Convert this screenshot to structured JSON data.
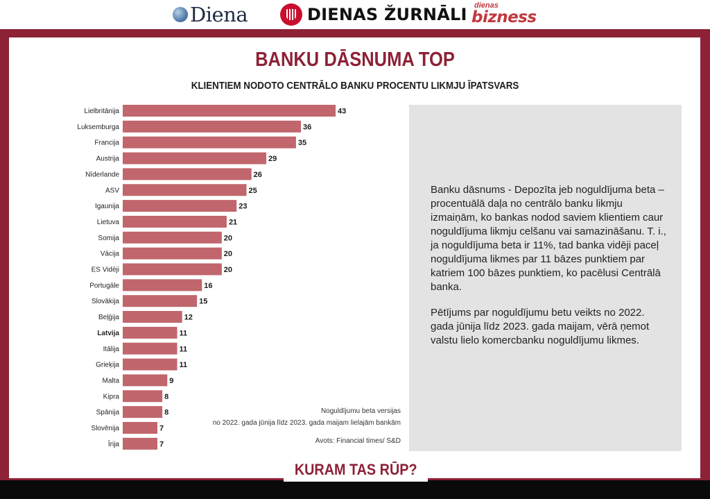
{
  "header": {
    "logos": [
      {
        "text": "Diena",
        "icon": "globe-icon"
      },
      {
        "text": "DIENAS ŽURNĀLI",
        "icon": "zurnali-badge-icon"
      },
      {
        "small": "dienas",
        "text": "bizness"
      }
    ]
  },
  "title": "BANKU DĀSNUMA TOP",
  "subtitle": "KLIENTIEM NODOTO CENTRĀLO BANKU PROCENTU LIKMJU ĪPATSVARS",
  "chart_data": {
    "type": "bar",
    "orientation": "horizontal",
    "categories": [
      "Lielbritānija",
      "Luksemburga",
      "Francija",
      "Austrija",
      "Nīderlande",
      "ASV",
      "Igaunija",
      "Lietuva",
      "Somija",
      "Vācija",
      "ES Vidēji",
      "Portugāle",
      "Slovākija",
      "Beļģija",
      "Latvija",
      "Itālija",
      "Grieķija",
      "Malta",
      "Kipra",
      "Spānija",
      "Slovēnija",
      "Īrija"
    ],
    "values": [
      43,
      36,
      35,
      29,
      26,
      25,
      23,
      21,
      20,
      20,
      20,
      16,
      15,
      12,
      11,
      11,
      11,
      9,
      8,
      8,
      7,
      7
    ],
    "highlight": "Latvija",
    "bar_color": "#c0666c",
    "grid": false
  },
  "notes": {
    "line1": "Noguldījumu beta versijas",
    "line2": "no 2022. gada jūnija līdz 2023. gada maijam lielajām bankām",
    "source": "Avots: Financial times/ S&D"
  },
  "info": {
    "p1": "Banku dāsnums - Depozīta jeb noguldījuma beta – procentuālā daļa no centrālo banku likmju izmaiņām, ko bankas nodod saviem klientiem caur noguldījuma likmju celšanu vai samazināšanu. T. i., ja noguldījuma beta ir 11%, tad banka vidēji paceļ noguldījuma likmes par 11 bāzes punktiem par katriem 100 bāzes punktiem, ko pacēlusi Centrālā banka.",
    "p2": "Pētījums par noguldījumu betu veikts no 2022. gada jūnija līdz 2023. gada maijam, vērā ņemot valstu lielo komercbanku noguldījumu likmes."
  },
  "footer": "KURAM TAS RŪP?",
  "colors": {
    "accent": "#8d2136",
    "panel": "#e3e3e3",
    "bar": "#c0666c"
  }
}
